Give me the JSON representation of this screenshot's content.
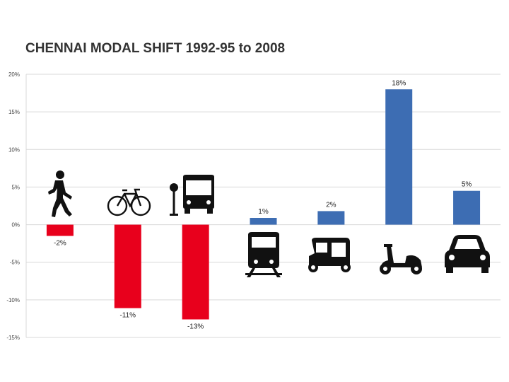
{
  "chart_data": {
    "type": "bar",
    "title": "CHENNAI MODAL SHIFT 1992-95 to 2008",
    "xlabel": "",
    "ylabel": "",
    "categories": [
      "",
      "",
      "",
      "",
      "",
      "",
      ""
    ],
    "category_icons": [
      "walking-person-icon",
      "bicycle-icon",
      "bus-icon",
      "train-icon",
      "auto-rickshaw-icon",
      "scooter-icon",
      "car-icon"
    ],
    "values": [
      -1.5,
      -11.1,
      -12.6,
      0.9,
      1.8,
      18.0,
      4.5
    ],
    "value_labels": [
      "-2%",
      "-11%",
      "-13%",
      "1%",
      "2%",
      "18%",
      "5%"
    ],
    "ylim": [
      -15,
      20
    ],
    "yticks": [
      20,
      15,
      10,
      5,
      0,
      -5,
      -10,
      -15
    ],
    "ytick_labels": [
      "20%",
      "15%",
      "10%",
      "5%",
      "0%",
      "-5%",
      "-10%",
      "-15%"
    ],
    "grid": true,
    "legend": "none",
    "colors": {
      "positive": "#3d6db3",
      "negative": "#e8001c",
      "grid": "#d9d9d9"
    }
  }
}
